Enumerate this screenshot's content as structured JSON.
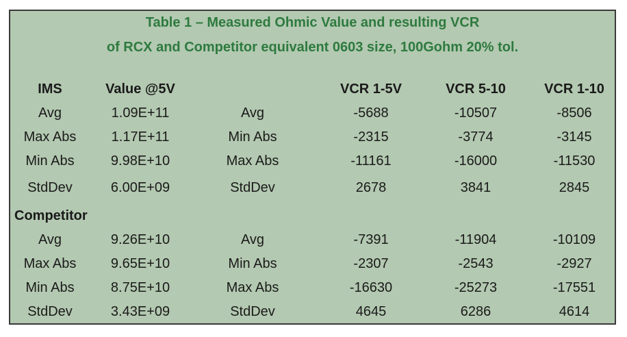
{
  "title": {
    "line1": "Table 1 – Measured Ohmic Value and resulting VCR",
    "line2": "of RCX and Competitor equivalent 0603 size, 100Gohm 20% tol."
  },
  "headers": {
    "group1": "IMS",
    "value": "Value @5V",
    "vcr_1_5": "VCR 1-5V",
    "vcr_5_10": "VCR 5-10",
    "vcr_1_10": "VCR 1-10"
  },
  "groups": [
    {
      "name": "IMS",
      "rows": [
        {
          "stat": "Avg",
          "value": "1.09E+11",
          "vcr_stat": "Avg",
          "vcr_1_5": "-5688",
          "vcr_5_10": "-10507",
          "vcr_1_10": "-8506"
        },
        {
          "stat": "Max Abs",
          "value": "1.17E+11",
          "vcr_stat": "Min Abs",
          "vcr_1_5": "-2315",
          "vcr_5_10": "-3774",
          "vcr_1_10": "-3145"
        },
        {
          "stat": "Min Abs",
          "value": "9.98E+10",
          "vcr_stat": "Max Abs",
          "vcr_1_5": "-11161",
          "vcr_5_10": "-16000",
          "vcr_1_10": "-11530"
        },
        {
          "stat": "StdDev",
          "value": "6.00E+09",
          "vcr_stat": "StdDev",
          "vcr_1_5": "2678",
          "vcr_5_10": "3841",
          "vcr_1_10": "2845"
        }
      ]
    },
    {
      "name": "Competitor",
      "rows": [
        {
          "stat": "Avg",
          "value": "9.26E+10",
          "vcr_stat": "Avg",
          "vcr_1_5": "-7391",
          "vcr_5_10": "-11904",
          "vcr_1_10": "-10109"
        },
        {
          "stat": "Max Abs",
          "value": "9.65E+10",
          "vcr_stat": "Min Abs",
          "vcr_1_5": "-2307",
          "vcr_5_10": "-2543",
          "vcr_1_10": "-2927"
        },
        {
          "stat": "Min Abs",
          "value": "8.75E+10",
          "vcr_stat": "Max Abs",
          "vcr_1_5": "-16630",
          "vcr_5_10": "-25273",
          "vcr_1_10": "-17551"
        },
        {
          "stat": "StdDev",
          "value": "3.43E+09",
          "vcr_stat": "StdDev",
          "vcr_1_5": "4645",
          "vcr_5_10": "6286",
          "vcr_1_10": "4614"
        }
      ]
    }
  ],
  "colors": {
    "background": "#b3c9b1",
    "title": "#2e7a3f",
    "border": "#3a3a3a"
  }
}
